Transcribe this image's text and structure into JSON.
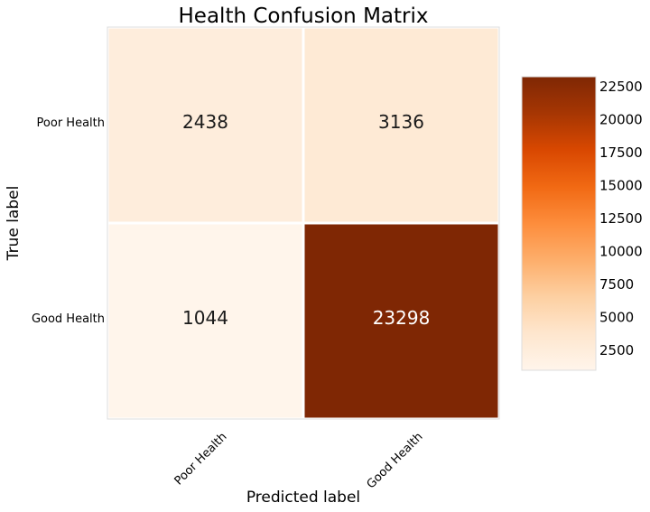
{
  "chart_data": {
    "type": "heatmap",
    "title": "Health Confusion Matrix",
    "xlabel": "Predicted label",
    "ylabel": "True label",
    "x_categories": [
      "Poor Health",
      "Good Health"
    ],
    "y_categories": [
      "Poor Health",
      "Good Health"
    ],
    "values": [
      [
        2438,
        3136
      ],
      [
        1044,
        23298
      ]
    ],
    "colormap": "Oranges",
    "colors": {
      "low": "#fff5eb",
      "high": "#7f2704"
    },
    "colorbar": {
      "ticks": [
        2500,
        5000,
        7500,
        10000,
        12500,
        15000,
        17500,
        20000,
        22500
      ],
      "range": [
        1044,
        23298
      ]
    },
    "grid": false
  }
}
